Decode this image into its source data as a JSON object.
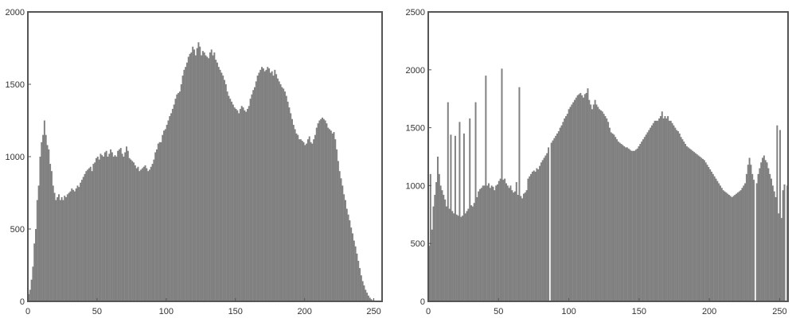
{
  "colors": {
    "bar": "#808080",
    "frame": "#555555",
    "axis_text": "#333333",
    "background": "#ffffff"
  },
  "chart_data": [
    {
      "type": "bar",
      "title": "",
      "xlabel": "",
      "ylabel": "",
      "xlim": [
        0,
        255
      ],
      "ylim": [
        0,
        2000
      ],
      "xticks": [
        "0",
        "50",
        "100",
        "150",
        "200",
        "250"
      ],
      "yticks": [
        "0",
        "500",
        "1000",
        "1500",
        "2000"
      ],
      "grid": false,
      "x_start": 0,
      "values": [
        50,
        80,
        150,
        240,
        400,
        500,
        700,
        800,
        1000,
        1100,
        1150,
        1250,
        1150,
        1080,
        1050,
        950,
        900,
        800,
        750,
        700,
        720,
        740,
        700,
        720,
        700,
        730,
        720,
        740,
        750,
        760,
        780,
        770,
        760,
        780,
        800,
        790,
        820,
        840,
        860,
        880,
        900,
        910,
        920,
        930,
        900,
        950,
        960,
        990,
        1000,
        980,
        1020,
        1010,
        1000,
        1030,
        1040,
        1000,
        1020,
        1050,
        1030,
        1000,
        1010,
        1000,
        1040,
        1050,
        1060,
        1020,
        1000,
        1030,
        1070,
        1040,
        990,
        980,
        970,
        960,
        940,
        920,
        930,
        900,
        910,
        920,
        930,
        940,
        920,
        900,
        910,
        930,
        950,
        980,
        1030,
        1050,
        1090,
        1100,
        1100,
        1150,
        1180,
        1190,
        1220,
        1250,
        1280,
        1300,
        1330,
        1360,
        1400,
        1430,
        1440,
        1450,
        1500,
        1560,
        1600,
        1620,
        1650,
        1690,
        1710,
        1720,
        1760,
        1740,
        1700,
        1750,
        1790,
        1760,
        1700,
        1730,
        1720,
        1700,
        1690,
        1680,
        1720,
        1740,
        1700,
        1720,
        1670,
        1650,
        1620,
        1600,
        1580,
        1560,
        1530,
        1500,
        1450,
        1420,
        1400,
        1380,
        1360,
        1340,
        1330,
        1320,
        1300,
        1330,
        1350,
        1340,
        1320,
        1310,
        1330,
        1350,
        1400,
        1430,
        1460,
        1480,
        1520,
        1560,
        1580,
        1600,
        1620,
        1610,
        1590,
        1600,
        1620,
        1610,
        1580,
        1590,
        1560,
        1600,
        1570,
        1540,
        1520,
        1500,
        1480,
        1470,
        1450,
        1420,
        1380,
        1340,
        1300,
        1260,
        1220,
        1190,
        1160,
        1150,
        1120,
        1120,
        1110,
        1100,
        1080,
        1090,
        1120,
        1140,
        1100,
        1090,
        1120,
        1150,
        1200,
        1230,
        1250,
        1260,
        1270,
        1260,
        1250,
        1230,
        1200,
        1190,
        1180,
        1160,
        1170,
        1120,
        1050,
        970,
        900,
        850,
        800,
        740,
        700,
        640,
        600,
        560,
        510,
        470,
        420,
        380,
        330,
        280,
        230,
        180,
        140,
        110,
        80,
        60,
        40,
        25,
        15,
        8,
        5,
        2,
        1,
        0,
        0,
        0
      ]
    },
    {
      "type": "bar",
      "title": "",
      "xlabel": "",
      "ylabel": "",
      "xlim": [
        0,
        255
      ],
      "ylim": [
        0,
        2500
      ],
      "xticks": [
        "0",
        "50",
        "100",
        "150",
        "200",
        "250"
      ],
      "yticks": [
        "0",
        "500",
        "1000",
        "1500",
        "2000",
        "2500"
      ],
      "grid": false,
      "x_start": 0,
      "values": [
        480,
        1100,
        620,
        820,
        920,
        1030,
        1250,
        1100,
        1000,
        960,
        920,
        880,
        820,
        1720,
        800,
        1440,
        780,
        760,
        1430,
        750,
        740,
        1550,
        730,
        740,
        1450,
        760,
        780,
        800,
        1580,
        830,
        820,
        850,
        1720,
        900,
        950,
        970,
        980,
        1000,
        1000,
        1950,
        1000,
        1020,
        980,
        1000,
        990,
        960,
        1000,
        1010,
        1040,
        1060,
        2010,
        1050,
        1060,
        1020,
        1000,
        980,
        1000,
        960,
        940,
        950,
        1030,
        920,
        1850,
        910,
        890,
        930,
        940,
        960,
        1060,
        1080,
        1100,
        1120,
        1130,
        1120,
        1150,
        1140,
        1170,
        1200,
        1220,
        1240,
        1260,
        1280,
        1330,
        0,
        1370,
        1390,
        1410,
        1430,
        1450,
        1470,
        1500,
        1520,
        1550,
        1580,
        1600,
        1620,
        1660,
        1680,
        1700,
        1720,
        1740,
        1760,
        1780,
        1790,
        1800,
        1780,
        1760,
        1790,
        1800,
        1840,
        1740,
        1700,
        1660,
        1700,
        1740,
        1700,
        1680,
        1660,
        1650,
        1640,
        1620,
        1600,
        1580,
        1550,
        1500,
        1460,
        1450,
        1440,
        1420,
        1400,
        1380,
        1370,
        1360,
        1350,
        1340,
        1330,
        1330,
        1320,
        1310,
        1300,
        1300,
        1300,
        1310,
        1320,
        1340,
        1360,
        1380,
        1400,
        1420,
        1440,
        1460,
        1480,
        1500,
        1520,
        1540,
        1560,
        1560,
        1560,
        1580,
        1600,
        1640,
        1580,
        1600,
        1580,
        1600,
        1560,
        1560,
        1540,
        1520,
        1500,
        1480,
        1470,
        1450,
        1420,
        1400,
        1380,
        1360,
        1340,
        1330,
        1320,
        1310,
        1300,
        1290,
        1280,
        1270,
        1260,
        1250,
        1240,
        1230,
        1220,
        1200,
        1180,
        1160,
        1140,
        1120,
        1100,
        1080,
        1060,
        1040,
        1020,
        1000,
        980,
        960,
        950,
        940,
        930,
        920,
        910,
        900,
        910,
        920,
        930,
        940,
        950,
        960,
        980,
        1000,
        1020,
        1100,
        1180,
        1240,
        1180,
        1100,
        1050,
        0,
        1020,
        1100,
        1150,
        1200,
        1240,
        1260,
        1220,
        1200,
        1150,
        1100,
        1060,
        1000,
        950,
        900,
        1520,
        760,
        1480,
        720,
        960,
        1010,
        0,
        1000
      ]
    }
  ]
}
